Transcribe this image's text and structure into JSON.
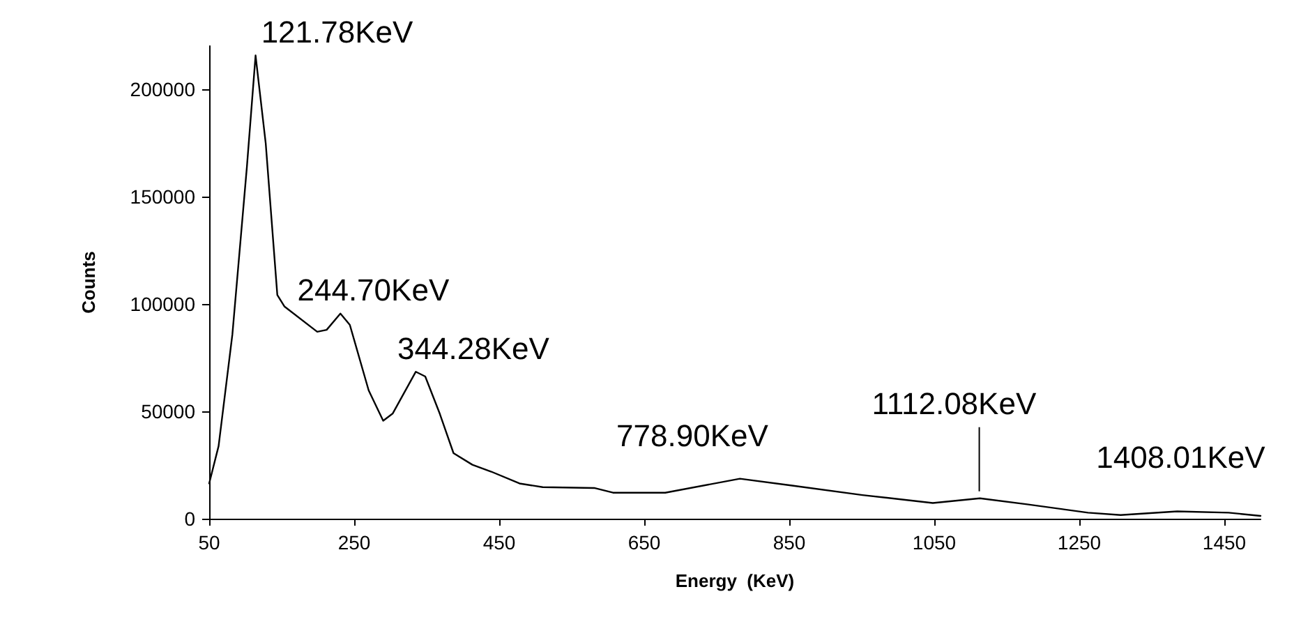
{
  "chart_data": {
    "type": "line",
    "xlabel": "Energy  (KeV)",
    "ylabel": "Counts",
    "x": [
      50,
      63,
      82,
      102,
      114,
      128,
      144,
      154,
      199,
      212,
      231,
      244,
      270,
      290,
      303,
      335,
      348,
      368,
      387,
      413,
      439,
      478,
      510,
      581,
      607,
      653,
      679,
      782,
      854,
      951,
      1048,
      1113,
      1178,
      1262,
      1307,
      1385,
      1456,
      1500
    ],
    "series": [
      {
        "color": "#000000",
        "values": [
          16400,
          33800,
          85700,
          163600,
          215600,
          174700,
          104100,
          98700,
          87000,
          87900,
          95500,
          90200,
          59700,
          45600,
          48900,
          68400,
          66200,
          48900,
          30500,
          25100,
          21900,
          16400,
          14700,
          14300,
          12100,
          12100,
          12100,
          18600,
          15400,
          11000,
          7300,
          9500,
          6700,
          2800,
          1700,
          3400,
          2800,
          1300
        ]
      }
    ],
    "xlim": [
      50,
      1500
    ],
    "xticks": [
      50,
      250,
      450,
      650,
      850,
      1050,
      1250,
      1450
    ],
    "ylim": [
      0,
      220000
    ],
    "yticks": [
      0,
      50000,
      100000,
      150000,
      200000
    ],
    "grid": false,
    "marker": "none",
    "line_style": "solid",
    "annotations": [
      {
        "text": "121.78KeV",
        "x": 121.78,
        "y": 215600
      },
      {
        "text": "244.70KeV",
        "x": 244.7,
        "y": 90200
      },
      {
        "text": "344.28KeV",
        "x": 344.28,
        "y": 67000
      },
      {
        "text": "778.90KeV",
        "x": 778.9,
        "y": 18600
      },
      {
        "text": "1112.08KeV",
        "x": 1112.08,
        "y": 9500
      },
      {
        "text": "1408.01KeV",
        "x": 1408.01,
        "y": 3300
      }
    ]
  }
}
